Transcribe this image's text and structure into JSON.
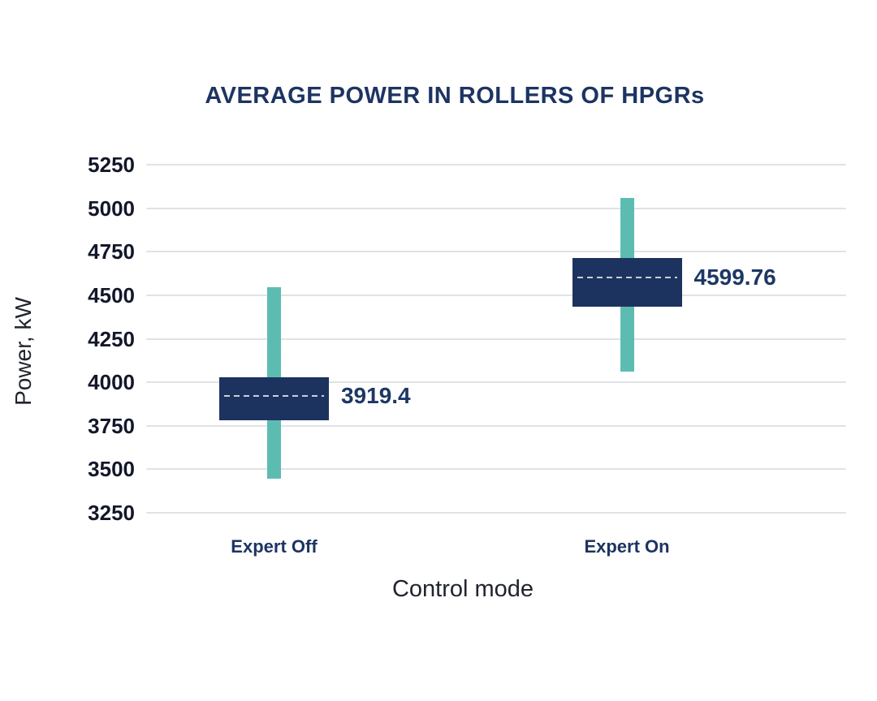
{
  "colors": {
    "title_color": "#1d3462",
    "box_fill": "#1d335f",
    "whisker_fill": "#5dbcb2",
    "grid_color": "#e0e2e6",
    "tick_color": "#13172a",
    "axis_title_color": "#20242c",
    "mean_dash_color": "#c9cfd8",
    "value_label_color": "#1d3765",
    "category_color": "#1d3462",
    "background": "#ffffff"
  },
  "chart_data": {
    "type": "box",
    "title": "AVERAGE POWER IN ROLLERS OF HPGRs",
    "xlabel": "Control mode",
    "ylabel": "Power, kW",
    "ylim": [
      3250,
      5250
    ],
    "yticks": [
      5250,
      5000,
      4750,
      4500,
      4250,
      4000,
      3750,
      3500,
      3250
    ],
    "grid": true,
    "legend": false,
    "categories": [
      "Expert Off",
      "Expert On"
    ],
    "series": [
      {
        "category": "Expert Off",
        "whisker_low": 3445,
        "whisker_high": 4545,
        "box_low": 3780,
        "box_high": 4030,
        "mean": 3919.4,
        "mean_label": "3919.4"
      },
      {
        "category": "Expert On",
        "whisker_low": 4060,
        "whisker_high": 5060,
        "box_low": 4435,
        "box_high": 4715,
        "mean": 4599.76,
        "mean_label": "4599.76"
      }
    ]
  }
}
